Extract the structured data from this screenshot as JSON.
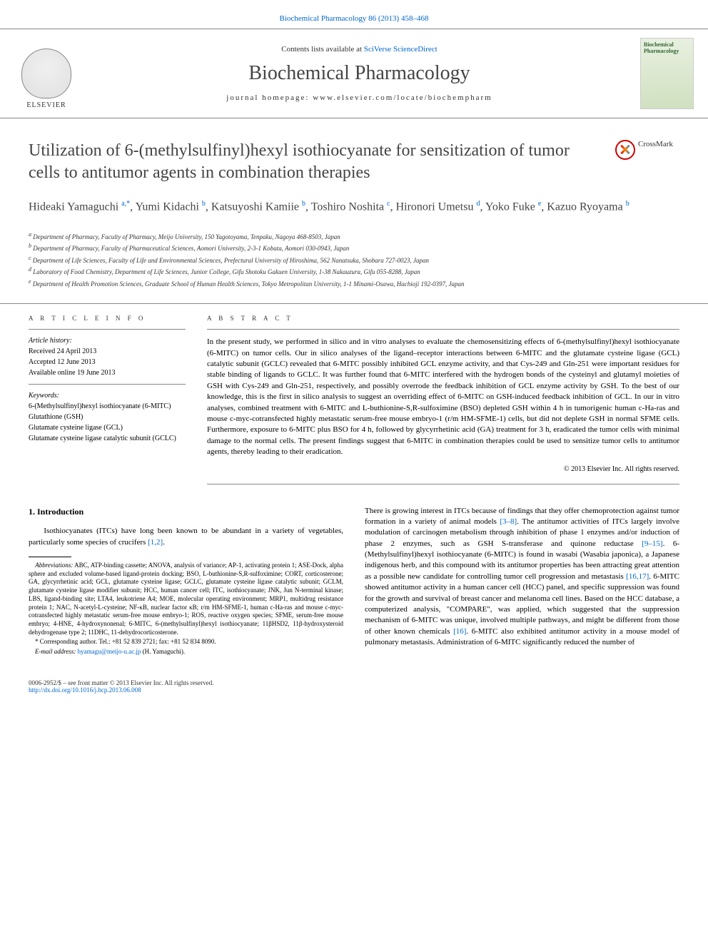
{
  "header": {
    "citation": "Biochemical Pharmacology 86 (2013) 458–468",
    "contents_prefix": "Contents lists available at ",
    "contents_link": "SciVerse ScienceDirect",
    "journal_title": "Biochemical Pharmacology",
    "homepage_prefix": "journal homepage: ",
    "homepage": "www.elsevier.com/locate/biochempharm",
    "elsevier": "ELSEVIER",
    "cover_title": "Biochemical Pharmacology",
    "crossmark": "CrossMark"
  },
  "article": {
    "title": "Utilization of 6-(methylsulfinyl)hexyl isothiocyanate for sensitization of tumor cells to antitumor agents in combination therapies",
    "authors_html": "Hideaki Yamaguchi <sup>a,*</sup>, Yumi Kidachi <sup>b</sup>, Katsuyoshi Kamiie <sup>b</sup>, Toshiro Noshita <sup>c</sup>, Hironori Umetsu <sup>d</sup>, Yoko Fuke <sup>e</sup>, Kazuo Ryoyama <sup>b</sup>",
    "affiliations": [
      "a Department of Pharmacy, Faculty of Pharmacy, Meijo University, 150 Yagotoyama, Tenpaku, Nagoya 468-8503, Japan",
      "b Department of Pharmacy, Faculty of Pharmaceutical Sciences, Aomori University, 2-3-1 Kobata, Aomori 030-0943, Japan",
      "c Department of Life Sciences, Faculty of Life and Environmental Sciences, Prefectural University of Hiroshima, 562 Nanatsuka, Shobara 727-0023, Japan",
      "d Laboratory of Food Chemistry, Department of Life Sciences, Junior College, Gifu Shotoku Gakuen University, 1-38 Nakauzura, Gifu 055-8288, Japan",
      "e Department of Health Promotion Sciences, Graduate School of Human Health Sciences, Tokyo Metropolitan University, 1-1 Minami-Osawa, Hachioji 192-0397, Japan"
    ]
  },
  "info": {
    "heading": "A R T I C L E   I N F O",
    "history_label": "Article history:",
    "history": [
      "Received 24 April 2013",
      "Accepted 12 June 2013",
      "Available online 19 June 2013"
    ],
    "keywords_label": "Keywords:",
    "keywords": [
      "6-(Methylsulfinyl)hexyl isothiocyanate (6-MITC)",
      "Glutathione (GSH)",
      "Glutamate cysteine ligase (GCL)",
      "Glutamate cysteine ligase catalytic subunit (GCLC)"
    ]
  },
  "abstract": {
    "heading": "A B S T R A C T",
    "text": "In the present study, we performed in silico and in vitro analyses to evaluate the chemosensitizing effects of 6-(methylsulfinyl)hexyl isothiocyanate (6-MITC) on tumor cells. Our in silico analyses of the ligand–receptor interactions between 6-MITC and the glutamate cysteine ligase (GCL) catalytic subunit (GCLC) revealed that 6-MITC possibly inhibited GCL enzyme activity, and that Cys-249 and Gln-251 were important residues for stable binding of ligands to GCLC. It was further found that 6-MITC interfered with the hydrogen bonds of the cysteinyl and glutamyl moieties of GSH with Cys-249 and Gln-251, respectively, and possibly overrode the feedback inhibition of GCL enzyme activity by GSH. To the best of our knowledge, this is the first in silico analysis to suggest an overriding effect of 6-MITC on GSH-induced feedback inhibition of GCL. In our in vitro analyses, combined treatment with 6-MITC and L-buthionine-S,R-sulfoximine (BSO) depleted GSH within 4 h in tumorigenic human c-Ha-ras and mouse c-myc-cotransfected highly metastatic serum-free mouse embryo-1 (r/m HM-SFME-1) cells, but did not deplete GSH in normal SFME cells. Furthermore, exposure to 6-MITC plus BSO for 4 h, followed by glycyrrhetinic acid (GA) treatment for 3 h, eradicated the tumor cells with minimal damage to the normal cells. The present findings suggest that 6-MITC in combination therapies could be used to sensitize tumor cells to antitumor agents, thereby leading to their eradication.",
    "copyright": "© 2013 Elsevier Inc. All rights reserved."
  },
  "body": {
    "section_number": "1.",
    "section_title": "Introduction",
    "col1_para1": "Isothiocyanates (ITCs) have long been known to be abundant in a variety of vegetables, particularly some species of crucifers ",
    "col1_ref1": "[1,2]",
    "col1_period": ".",
    "col2_text": "There is growing interest in ITCs because of findings that they offer chemoprotection against tumor formation in a variety of animal models [3–8]. The antitumor activities of ITCs largely involve modulation of carcinogen metabolism through inhibition of phase 1 enzymes and/or induction of phase 2 enzymes, such as GSH S-transferase and quinone reductase [9–15]. 6-(Methylsulfinyl)hexyl isothiocyanate (6-MITC) is found in wasabi (Wasabia japonica), a Japanese indigenous herb, and this compound with its antitumor properties has been attracting great attention as a possible new candidate for controlling tumor cell progression and metastasis [16,17]. 6-MITC showed antitumor activity in a human cancer cell (HCC) panel, and specific suppression was found for the growth and survival of breast cancer and melanoma cell lines. Based on the HCC database, a computerized analysis, \"COMPARE\", was applied, which suggested that the suppression mechanism of 6-MITC was unique, involved multiple pathways, and might be different from those of other known chemicals [16]. 6-MITC also exhibited antitumor activity in a mouse model of pulmonary metastasis. Administration of 6-MITC significantly reduced the number of",
    "col2_refs": [
      "[3–8]",
      "[9–15]",
      "[16,17]",
      "[16]"
    ]
  },
  "footnotes": {
    "abbrev_label": "Abbreviations:",
    "abbrev_text": " ABC, ATP-binding cassette; ANOVA, analysis of variance; AP-1, activating protein 1; ASE-Dock, alpha sphere and excluded volume-based ligand-protein docking; BSO, L-buthionine-S,R-sulfoximine; CORT, corticosterone; GA, glycyrrhetinic acid; GCL, glutamate cysteine ligase; GCLC, glutamate cysteine ligase catalytic subunit; GCLM, glutamate cysteine ligase modifier subunit; HCC, human cancer cell; ITC, isothiocyanate; JNK, Jun N-terminal kinase; LBS, ligand-binding site; LTA4, leukotriene A4; MOE, molecular operating environment; MRP1, multidrug resistance protein 1; NAC, N-acetyl-L-cysteine; NF-κB, nuclear factor κB; r/m HM-SFME-1, human c-Ha-ras and mouse c-myc-cotransfected highly metastatic serum-free mouse embryo-1; ROS, reactive oxygen species; SFME, serum-free mouse embryo; 4-HNE, 4-hydroxynonenal; 6-MITC, 6-(methylsulfinyl)hexyl isothiocyanate; 11βHSD2, 11β-hydroxysteroid dehydrogenase type 2; 11DHC, 11-dehydrocorticosterone.",
    "corresponding": "* Corresponding author. Tel.: +81 52 839 2721; fax: +81 52 834 8090.",
    "email_label": "E-mail address: ",
    "email": "hyamagu@meijo-u.ac.jp",
    "email_suffix": " (H. Yamaguchi)."
  },
  "footer": {
    "issn": "0006-2952/$ – see front matter © 2013 Elsevier Inc. All rights reserved.",
    "doi": "http://dx.doi.org/10.1016/j.bcp.2013.06.008"
  },
  "colors": {
    "link": "#0066cc",
    "text": "#000000",
    "heading": "#444444",
    "border": "#888888"
  }
}
